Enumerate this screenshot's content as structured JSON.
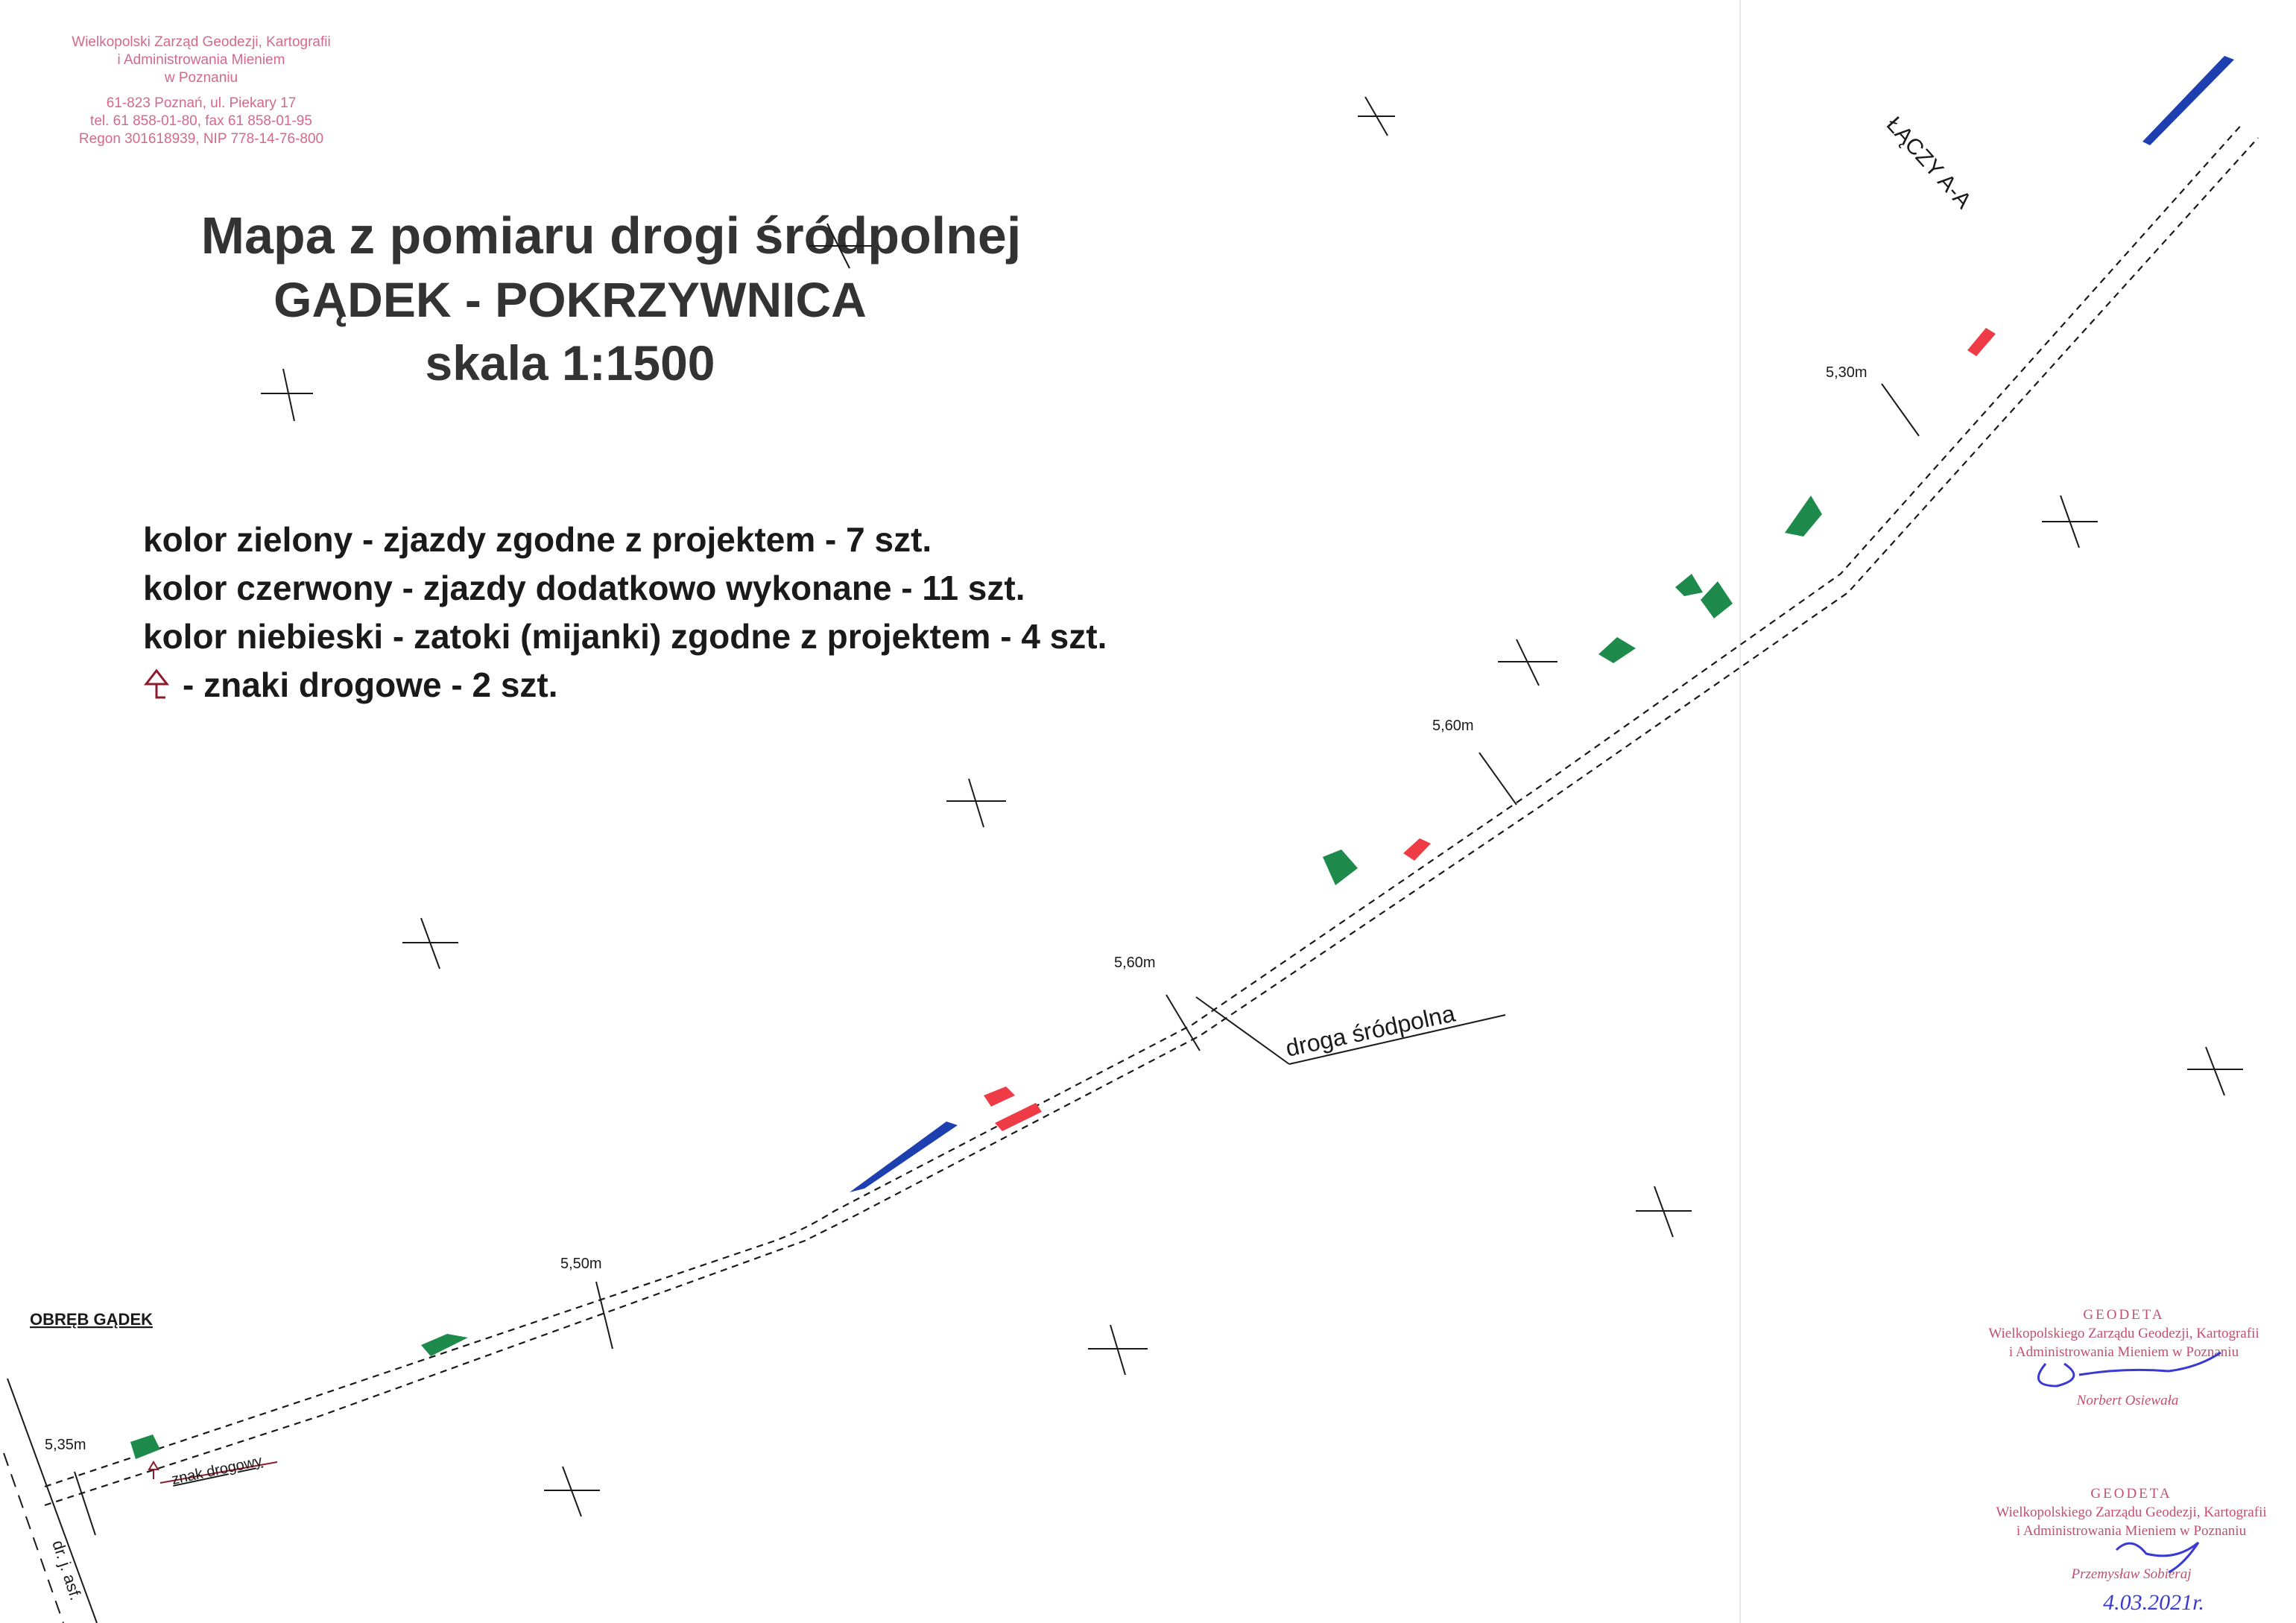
{
  "map": {
    "title": "Mapa z pomiaru drogi śródpolnej",
    "subtitle": "GĄDEK - POKRZYWNICA",
    "scale": "skala 1:1500"
  },
  "legend": {
    "green": "kolor zielony - zjazdy zgodne z projektem - 7 szt.",
    "red": "kolor czerwony - zjazdy dodatkowo wykonane - 11 szt.",
    "blue": "kolor niebieski - zatoki (mijanki) zgodne z projektem - 4 szt.",
    "sign": "- znaki drogowe - 2 szt.",
    "colors": {
      "green": "#1e8a4c",
      "red": "#ef3b45",
      "blue": "#1e3fb0",
      "sign": "#8b1c2c"
    }
  },
  "labels": {
    "precinct": "OBRĘB GĄDEK",
    "connects": "ŁĄCZY A-A",
    "road": "droga śródpolna",
    "sign": "znak drogowy",
    "side_road": "dr. j. asf."
  },
  "widths": [
    "5,35m",
    "5,50m",
    "5,60m",
    "5,60m",
    "5,30m"
  ],
  "stamp_top": [
    "Wielkopolski Zarząd Geodezji, Kartografii",
    "i Administrowania Mieniem",
    "w Poznaniu",
    "61-823 Poznań, ul. Piekary 17",
    "tel. 61 858-01-80, fax 61 858-01-95",
    "Regon 301618939, NIP 778-14-76-800"
  ],
  "stamp_1": {
    "title": "GEODETA",
    "line1": "Wielkopolskiego Zarządu Geodezji, Kartografii",
    "line2": "i Administrowania Mieniem w Poznaniu",
    "name": "Norbert Osiewała"
  },
  "stamp_2": {
    "title": "GEODETA",
    "line1": "Wielkopolskiego Zarządu Geodezji, Kartografii",
    "line2": "i Administrowania Mieniem w Poznaniu",
    "name": "Przemysław Sobieraj",
    "date": "4.03.2021r."
  }
}
